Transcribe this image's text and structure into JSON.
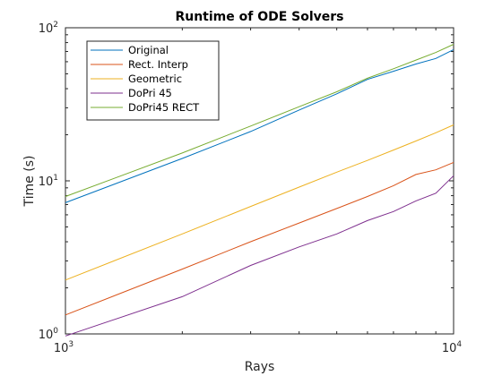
{
  "chart_data": {
    "type": "line",
    "title": "Runtime of ODE Solvers",
    "xlabel": "Rays",
    "ylabel": "Time (s)",
    "xscale": "log",
    "yscale": "log",
    "xlim": [
      1000,
      10000
    ],
    "ylim": [
      1,
      100
    ],
    "x_ticks": [
      {
        "base": "10",
        "exp": "3",
        "value": 1000
      },
      {
        "base": "10",
        "exp": "4",
        "value": 10000
      }
    ],
    "y_ticks": [
      {
        "base": "10",
        "exp": "0",
        "value": 1
      },
      {
        "base": "10",
        "exp": "1",
        "value": 10
      },
      {
        "base": "10",
        "exp": "2",
        "value": 100
      }
    ],
    "legend_position": "top-left",
    "grid": false,
    "x": [
      1000,
      2000,
      3000,
      4000,
      5000,
      6000,
      7000,
      8000,
      9000,
      10000
    ],
    "series": [
      {
        "name": "Original",
        "color": "#0072BD",
        "values": [
          7.2,
          14.0,
          21.0,
          29.0,
          37.0,
          46.0,
          52.0,
          58.0,
          63.0,
          72.0
        ]
      },
      {
        "name": "Rect. Interp",
        "color": "#D95319",
        "values": [
          1.33,
          2.65,
          4.0,
          5.3,
          6.6,
          7.9,
          9.3,
          11.0,
          11.8,
          13.2
        ]
      },
      {
        "name": "Geometric",
        "color": "#EDB120",
        "values": [
          2.25,
          4.5,
          6.8,
          9.1,
          11.4,
          13.6,
          15.9,
          18.2,
          20.6,
          23.2
        ]
      },
      {
        "name": "DoPri 45",
        "color": "#7E2F8E",
        "values": [
          0.97,
          1.75,
          2.8,
          3.7,
          4.5,
          5.5,
          6.3,
          7.4,
          8.3,
          10.8
        ]
      },
      {
        "name": "DoPri45 RECT",
        "color": "#77AC30",
        "values": [
          7.9,
          15.2,
          22.8,
          30.5,
          38.2,
          46.8,
          54.0,
          61.5,
          69.0,
          78.0
        ]
      }
    ]
  }
}
